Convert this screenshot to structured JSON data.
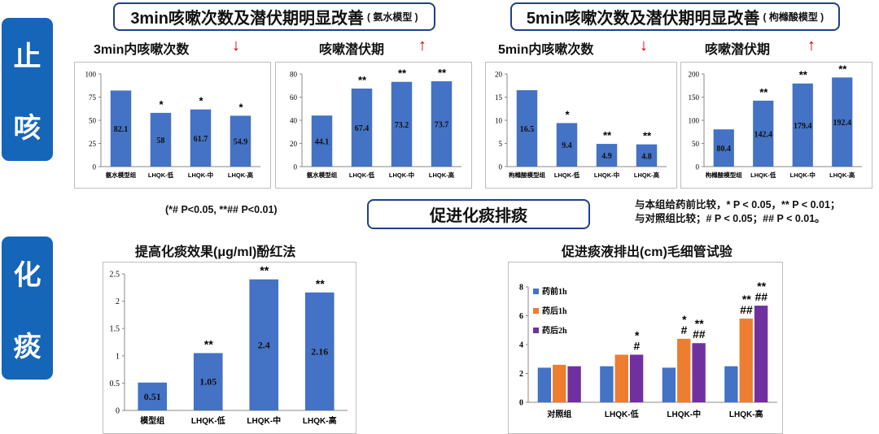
{
  "sidebar": {
    "top": [
      "止",
      "咳"
    ],
    "bottom": [
      "化",
      "痰"
    ]
  },
  "sections": {
    "left_title": "3min咳嗽次数及潜伏期明显改善",
    "left_subtitle": "( 氨水模型 )",
    "right_title": "5min咳嗽次数及潜伏期明显改善",
    "right_subtitle": "( 枸橼酸模型 )",
    "middle_title": "促进化痰排痰"
  },
  "notes": {
    "left": "(*# P<0.05, **## P<0.01)",
    "right_line1": "与本组给药前比较，* P < 0.05，** P < 0.01；",
    "right_line2": "与对照组比较；# P < 0.05；## P < 0.01。"
  },
  "arrows": {
    "down": "↓",
    "up": "↑"
  },
  "colors": {
    "blue": "#4472c4",
    "orange": "#ed7d31",
    "purple": "#7030a0",
    "sidebar": "#1565b8",
    "arrow": "#c00000"
  },
  "chart_data": [
    {
      "type": "bar",
      "title": "3min内咳嗽次数",
      "trend": "down",
      "categories": [
        "氨水模型组",
        "LHQK-低",
        "LHQK-中",
        "LHQK-高"
      ],
      "values": [
        82.1,
        58,
        61.7,
        54.9
      ],
      "marks": [
        "",
        "*",
        "*",
        "*"
      ],
      "ylim": [
        0,
        100
      ],
      "yticks": [
        0,
        25,
        50,
        75,
        100
      ]
    },
    {
      "type": "bar",
      "title": "咳嗽潜伏期",
      "trend": "up",
      "categories": [
        "氨水模型组",
        "LHQK-低",
        "LHQK-中",
        "LHQK-高"
      ],
      "values": [
        44.1,
        67.4,
        73.2,
        73.7
      ],
      "marks": [
        "",
        "**",
        "**",
        "**"
      ],
      "ylim": [
        0,
        80
      ],
      "yticks": [
        0,
        20,
        40,
        60,
        80
      ]
    },
    {
      "type": "bar",
      "title": "5min内咳嗽次数",
      "trend": "down",
      "categories": [
        "枸橼酸模型组",
        "LHQK-低",
        "LHQK-中",
        "LHQK-高"
      ],
      "values": [
        16.5,
        9.4,
        4.9,
        4.8
      ],
      "marks": [
        "",
        "*",
        "**",
        "**"
      ],
      "ylim": [
        0,
        20
      ],
      "yticks": [
        0,
        5,
        10,
        15,
        20
      ]
    },
    {
      "type": "bar",
      "title": "咳嗽潜伏期",
      "trend": "up",
      "categories": [
        "枸橼酸模型组",
        "LHQK-低",
        "LHQK-中",
        "LHQK-高"
      ],
      "values": [
        80.4,
        142.4,
        179.4,
        192.4
      ],
      "marks": [
        "",
        "**",
        "**",
        "**"
      ],
      "ylim": [
        0,
        200
      ],
      "yticks": [
        0,
        50,
        100,
        150,
        200
      ]
    },
    {
      "type": "bar",
      "title": "提高化痰效果(μg/ml)酚红法",
      "categories": [
        "模型组",
        "LHQK-低",
        "LHQK-中",
        "LHQK-高"
      ],
      "values": [
        0.51,
        1.05,
        2.4,
        2.16
      ],
      "marks": [
        "",
        "**",
        "**",
        "**"
      ],
      "ylim": [
        0,
        2.5
      ],
      "yticks": [
        0,
        0.5,
        1,
        1.5,
        2,
        2.5
      ]
    },
    {
      "type": "bar",
      "title": "促进痰液排出(cm)毛细管试验",
      "categories": [
        "对照组",
        "LHQK-低",
        "LHQK-中",
        "LHQK-高"
      ],
      "series": [
        {
          "name": "药前1h",
          "values": [
            2.4,
            2.5,
            2.4,
            2.5
          ],
          "marks": [
            "",
            "",
            "",
            ""
          ]
        },
        {
          "name": "药后1h",
          "values": [
            2.6,
            3.3,
            4.4,
            5.8
          ],
          "marks": [
            "",
            "",
            "*\n#",
            "**\n##"
          ]
        },
        {
          "name": "药后2h",
          "values": [
            2.5,
            3.3,
            4.1,
            6.7
          ],
          "marks": [
            "",
            "*\n#",
            "**\n##",
            "**\n##"
          ]
        }
      ],
      "ylim": [
        0,
        8
      ],
      "yticks": [
        0,
        2,
        4,
        6,
        8
      ],
      "legend": "top-left"
    }
  ]
}
